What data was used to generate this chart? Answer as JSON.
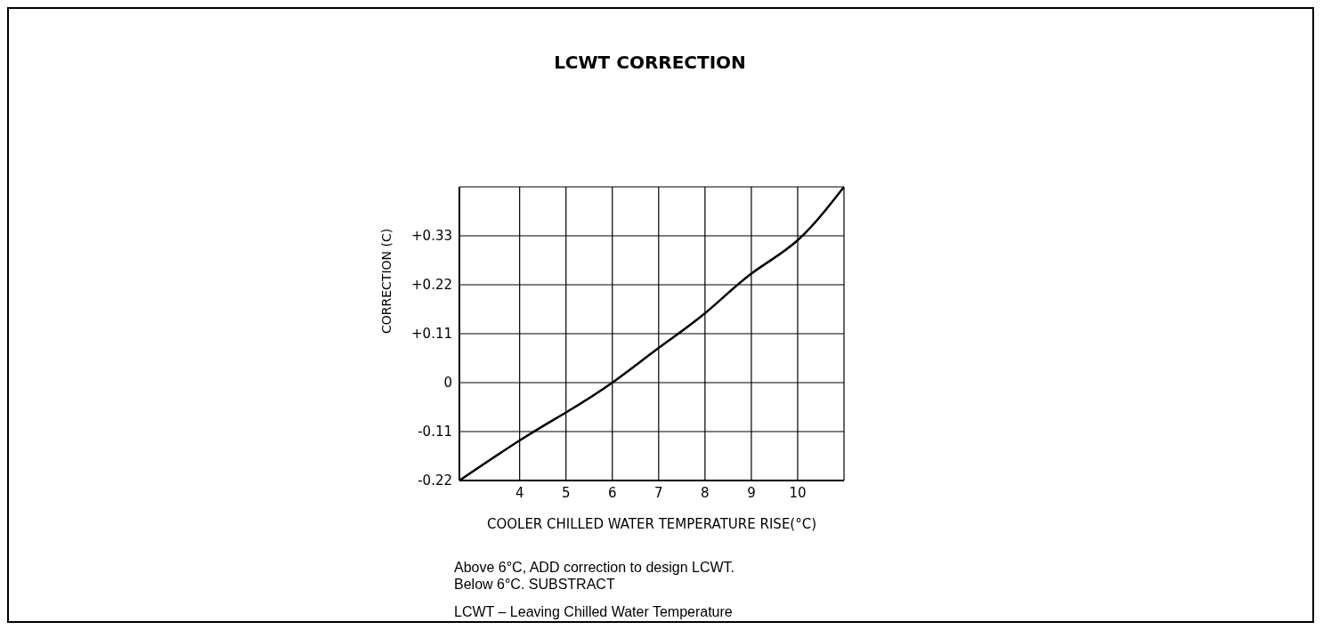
{
  "chart_data": {
    "type": "line",
    "title": "LCWT CORRECTION",
    "xlabel": "COOLER CHILLED WATER TEMPERATURE RISE(°C)",
    "ylabel": "CORRECTION (C)",
    "annotations": [
      "Above 6°C, ADD correction to design LCWT.",
      "Below 6°C. SUBSTRACT",
      "LCWT – Leaving Chilled Water Temperature"
    ],
    "x": [
      2.7,
      4,
      5,
      6,
      7,
      8,
      9,
      10,
      11
    ],
    "series": [
      {
        "color": "#000000",
        "values": [
          -0.22,
          -0.13,
          -0.067,
          0,
          0.078,
          0.156,
          0.245,
          0.32,
          0.44
        ]
      }
    ],
    "xlim": [
      2.7,
      11
    ],
    "xticks": [
      4,
      5,
      6,
      7,
      8,
      9,
      10,
      {
        "value": 11,
        "label": null
      }
    ],
    "ylim": [
      -0.22,
      0.44
    ],
    "yticks": [
      -0.22,
      -0.11,
      0,
      {
        "value": 0.11,
        "label": "+0.11"
      },
      {
        "value": 0.22,
        "label": "+0.22"
      },
      {
        "value": 0.33,
        "label": "+0.33"
      },
      {
        "value": 0.44,
        "label": null
      }
    ],
    "grid": true,
    "marker": "none",
    "line_style": "solid"
  }
}
